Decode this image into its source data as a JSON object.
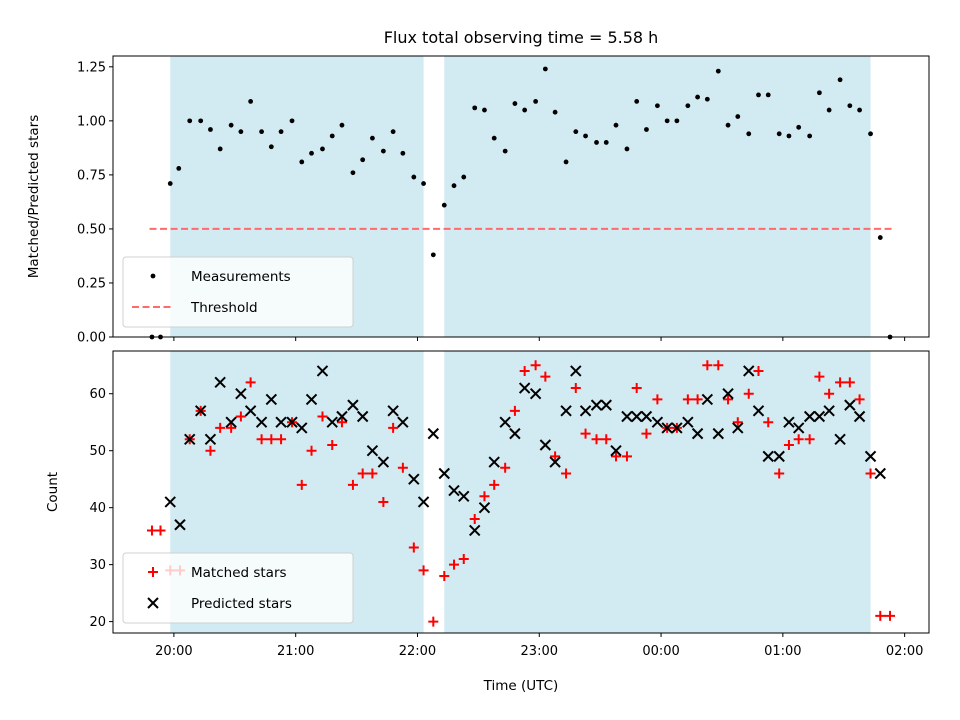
{
  "chart_data": {
    "type": "scatter",
    "title": "Flux total observing time = 5.58 h",
    "xlabel": "Time (UTC)",
    "x_ticks": [
      "20:00",
      "21:00",
      "22:00",
      "23:00",
      "00:00",
      "01:00",
      "02:00"
    ],
    "x_range_hours": [
      19.5,
      26.2
    ],
    "shaded_intervals_hours": [
      [
        19.97,
        22.05
      ],
      [
        22.22,
        25.72
      ]
    ],
    "colors": {
      "shade": "#add8e6",
      "threshold": "#ff6b6b",
      "matched": "#ff0000",
      "predicted": "#000000",
      "measurement": "#000000"
    },
    "panels": [
      {
        "id": "ratio",
        "ylabel": "Matched/Predicted stars",
        "ylim": [
          0,
          1.3
        ],
        "y_ticks": [
          "0.00",
          "0.25",
          "0.50",
          "0.75",
          "1.00",
          "1.25"
        ],
        "legend_position": "lower-left",
        "legend": [
          "Measurements",
          "Threshold"
        ],
        "threshold": {
          "name": "Threshold",
          "value": 0.5,
          "x_range_hours": [
            19.8,
            25.9
          ]
        },
        "series": [
          {
            "name": "Measurements",
            "style": "dot",
            "points": [
              [
                19.82,
                0
              ],
              [
                19.89,
                0
              ],
              [
                19.97,
                0.71
              ],
              [
                20.04,
                0.78
              ],
              [
                20.13,
                1.0
              ],
              [
                20.22,
                1.0
              ],
              [
                20.3,
                0.96
              ],
              [
                20.38,
                0.87
              ],
              [
                20.47,
                0.98
              ],
              [
                20.55,
                0.95
              ],
              [
                20.63,
                1.09
              ],
              [
                20.72,
                0.95
              ],
              [
                20.8,
                0.88
              ],
              [
                20.88,
                0.95
              ],
              [
                20.97,
                1.0
              ],
              [
                21.05,
                0.81
              ],
              [
                21.13,
                0.85
              ],
              [
                21.22,
                0.87
              ],
              [
                21.3,
                0.93
              ],
              [
                21.38,
                0.98
              ],
              [
                21.47,
                0.76
              ],
              [
                21.55,
                0.82
              ],
              [
                21.63,
                0.92
              ],
              [
                21.72,
                0.86
              ],
              [
                21.8,
                0.95
              ],
              [
                21.88,
                0.85
              ],
              [
                21.97,
                0.74
              ],
              [
                22.05,
                0.71
              ],
              [
                22.13,
                0.38
              ],
              [
                22.22,
                0.61
              ],
              [
                22.3,
                0.7
              ],
              [
                22.38,
                0.74
              ],
              [
                22.47,
                1.06
              ],
              [
                22.55,
                1.05
              ],
              [
                22.63,
                0.92
              ],
              [
                22.72,
                0.86
              ],
              [
                22.8,
                1.08
              ],
              [
                22.88,
                1.05
              ],
              [
                22.97,
                1.09
              ],
              [
                23.05,
                1.24
              ],
              [
                23.13,
                1.04
              ],
              [
                23.22,
                0.81
              ],
              [
                23.3,
                0.95
              ],
              [
                23.38,
                0.93
              ],
              [
                23.47,
                0.9
              ],
              [
                23.55,
                0.9
              ],
              [
                23.63,
                0.98
              ],
              [
                23.72,
                0.87
              ],
              [
                23.8,
                1.09
              ],
              [
                23.88,
                0.96
              ],
              [
                23.97,
                1.07
              ],
              [
                24.05,
                1.0
              ],
              [
                24.13,
                1.0
              ],
              [
                24.22,
                1.07
              ],
              [
                24.3,
                1.11
              ],
              [
                24.38,
                1.1
              ],
              [
                24.47,
                1.23
              ],
              [
                24.55,
                0.98
              ],
              [
                24.63,
                1.02
              ],
              [
                24.72,
                0.94
              ],
              [
                24.8,
                1.12
              ],
              [
                24.88,
                1.12
              ],
              [
                24.97,
                0.94
              ],
              [
                25.05,
                0.93
              ],
              [
                25.13,
                0.97
              ],
              [
                25.22,
                0.93
              ],
              [
                25.3,
                1.13
              ],
              [
                25.38,
                1.05
              ],
              [
                25.47,
                1.19
              ],
              [
                25.55,
                1.07
              ],
              [
                25.63,
                1.05
              ],
              [
                25.72,
                0.94
              ],
              [
                25.8,
                0.46
              ],
              [
                25.88,
                0
              ]
            ]
          }
        ]
      },
      {
        "id": "count",
        "ylabel": "Count",
        "ylim": [
          18,
          67.5
        ],
        "y_ticks": [
          "20",
          "30",
          "40",
          "50",
          "60"
        ],
        "legend_position": "lower-left",
        "legend": [
          "Matched stars",
          "Predicted stars"
        ],
        "series": [
          {
            "name": "Matched stars",
            "style": "plus",
            "points": [
              [
                19.82,
                36
              ],
              [
                19.89,
                36
              ],
              [
                19.97,
                29
              ],
              [
                20.05,
                29
              ],
              [
                20.13,
                52
              ],
              [
                20.22,
                57
              ],
              [
                20.3,
                50
              ],
              [
                20.38,
                54
              ],
              [
                20.47,
                54
              ],
              [
                20.55,
                56
              ],
              [
                20.63,
                62
              ],
              [
                20.72,
                52
              ],
              [
                20.8,
                52
              ],
              [
                20.88,
                52
              ],
              [
                20.97,
                55
              ],
              [
                21.05,
                44
              ],
              [
                21.13,
                50
              ],
              [
                21.22,
                56
              ],
              [
                21.3,
                51
              ],
              [
                21.38,
                55
              ],
              [
                21.47,
                44
              ],
              [
                21.55,
                46
              ],
              [
                21.63,
                46
              ],
              [
                21.72,
                41
              ],
              [
                21.8,
                54
              ],
              [
                21.88,
                47
              ],
              [
                21.97,
                33
              ],
              [
                22.05,
                29
              ],
              [
                22.13,
                20
              ],
              [
                22.22,
                28
              ],
              [
                22.3,
                30
              ],
              [
                22.38,
                31
              ],
              [
                22.47,
                38
              ],
              [
                22.55,
                42
              ],
              [
                22.63,
                44
              ],
              [
                22.72,
                47
              ],
              [
                22.8,
                57
              ],
              [
                22.88,
                64
              ],
              [
                22.97,
                65
              ],
              [
                23.05,
                63
              ],
              [
                23.13,
                49
              ],
              [
                23.22,
                46
              ],
              [
                23.3,
                61
              ],
              [
                23.38,
                53
              ],
              [
                23.47,
                52
              ],
              [
                23.55,
                52
              ],
              [
                23.63,
                49
              ],
              [
                23.72,
                49
              ],
              [
                23.8,
                61
              ],
              [
                23.88,
                53
              ],
              [
                23.97,
                59
              ],
              [
                24.05,
                54
              ],
              [
                24.13,
                54
              ],
              [
                24.22,
                59
              ],
              [
                24.3,
                59
              ],
              [
                24.38,
                65
              ],
              [
                24.47,
                65
              ],
              [
                24.55,
                59
              ],
              [
                24.63,
                55
              ],
              [
                24.72,
                60
              ],
              [
                24.8,
                64
              ],
              [
                24.88,
                55
              ],
              [
                24.97,
                46
              ],
              [
                25.05,
                51
              ],
              [
                25.13,
                52
              ],
              [
                25.22,
                52
              ],
              [
                25.3,
                63
              ],
              [
                25.38,
                60
              ],
              [
                25.47,
                62
              ],
              [
                25.55,
                62
              ],
              [
                25.63,
                59
              ],
              [
                25.72,
                46
              ],
              [
                25.8,
                21
              ],
              [
                25.88,
                21
              ]
            ]
          },
          {
            "name": "Predicted stars",
            "style": "x",
            "points": [
              [
                19.97,
                41
              ],
              [
                20.05,
                37
              ],
              [
                20.13,
                52
              ],
              [
                20.22,
                57
              ],
              [
                20.3,
                52
              ],
              [
                20.38,
                62
              ],
              [
                20.47,
                55
              ],
              [
                20.55,
                60
              ],
              [
                20.63,
                57
              ],
              [
                20.72,
                55
              ],
              [
                20.8,
                59
              ],
              [
                20.88,
                55
              ],
              [
                20.97,
                55
              ],
              [
                21.05,
                54
              ],
              [
                21.13,
                59
              ],
              [
                21.22,
                64
              ],
              [
                21.3,
                55
              ],
              [
                21.38,
                56
              ],
              [
                21.47,
                58
              ],
              [
                21.55,
                56
              ],
              [
                21.63,
                50
              ],
              [
                21.72,
                48
              ],
              [
                21.8,
                57
              ],
              [
                21.88,
                55
              ],
              [
                21.97,
                45
              ],
              [
                22.05,
                41
              ],
              [
                22.13,
                53
              ],
              [
                22.22,
                46
              ],
              [
                22.3,
                43
              ],
              [
                22.38,
                42
              ],
              [
                22.47,
                36
              ],
              [
                22.55,
                40
              ],
              [
                22.63,
                48
              ],
              [
                22.72,
                55
              ],
              [
                22.8,
                53
              ],
              [
                22.88,
                61
              ],
              [
                22.97,
                60
              ],
              [
                23.05,
                51
              ],
              [
                23.13,
                48
              ],
              [
                23.22,
                57
              ],
              [
                23.3,
                64
              ],
              [
                23.38,
                57
              ],
              [
                23.47,
                58
              ],
              [
                23.55,
                58
              ],
              [
                23.63,
                50
              ],
              [
                23.72,
                56
              ],
              [
                23.8,
                56
              ],
              [
                23.88,
                56
              ],
              [
                23.97,
                55
              ],
              [
                24.05,
                54
              ],
              [
                24.13,
                54
              ],
              [
                24.22,
                55
              ],
              [
                24.3,
                53
              ],
              [
                24.38,
                59
              ],
              [
                24.47,
                53
              ],
              [
                24.55,
                60
              ],
              [
                24.63,
                54
              ],
              [
                24.72,
                64
              ],
              [
                24.8,
                57
              ],
              [
                24.88,
                49
              ],
              [
                24.97,
                49
              ],
              [
                25.05,
                55
              ],
              [
                25.13,
                54
              ],
              [
                25.22,
                56
              ],
              [
                25.3,
                56
              ],
              [
                25.38,
                57
              ],
              [
                25.47,
                52
              ],
              [
                25.55,
                58
              ],
              [
                25.63,
                56
              ],
              [
                25.72,
                49
              ],
              [
                25.8,
                46
              ]
            ]
          }
        ]
      }
    ]
  }
}
